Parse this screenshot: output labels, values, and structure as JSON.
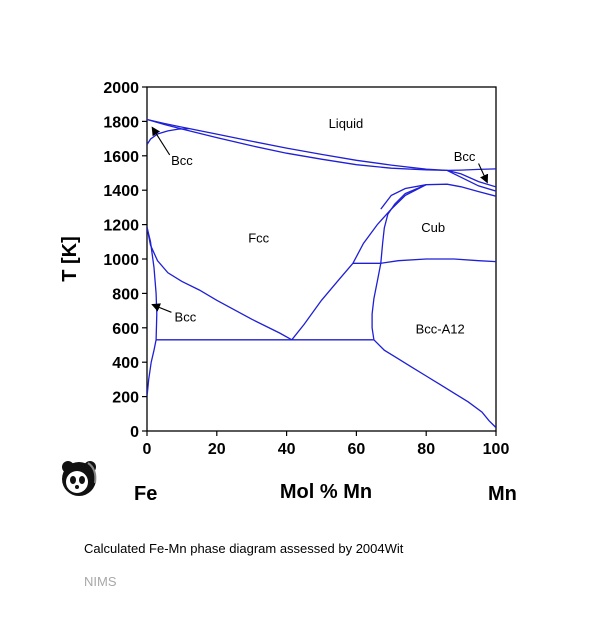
{
  "chart_data": {
    "type": "line",
    "title": "",
    "xlabel": "Mol % Mn",
    "ylabel": "T [K]",
    "xlim": [
      0,
      100
    ],
    "ylim": [
      0,
      2000
    ],
    "xticks": [
      0,
      20,
      40,
      60,
      80,
      100
    ],
    "yticks": [
      0,
      200,
      400,
      600,
      800,
      1000,
      1200,
      1400,
      1600,
      1800,
      2000
    ],
    "grid": false,
    "left_element": "Fe",
    "right_element": "Mn",
    "series": [
      {
        "x": [
          0,
          5,
          10,
          20,
          30,
          40,
          50,
          60,
          70,
          80,
          86,
          90,
          95,
          100
        ],
        "y": [
          1811,
          1788,
          1767,
          1726,
          1685,
          1645,
          1608,
          1574,
          1546,
          1522,
          1515,
          1495,
          1450,
          1419
        ]
      },
      {
        "x": [
          0,
          5,
          10,
          20,
          30,
          40,
          50,
          60,
          70,
          80,
          86
        ],
        "y": [
          1811,
          1782,
          1756,
          1706,
          1658,
          1615,
          1580,
          1548,
          1528,
          1518,
          1515
        ]
      },
      {
        "x": [
          0,
          1,
          3,
          6,
          9,
          12
        ],
        "y": [
          1665,
          1697,
          1727,
          1745,
          1755,
          1758
        ]
      },
      {
        "x": [
          86,
          90,
          95,
          100
        ],
        "y": [
          1515,
          1517,
          1521,
          1524
        ]
      },
      {
        "x": [
          86,
          90,
          95,
          100
        ],
        "y": [
          1515,
          1475,
          1425,
          1395
        ]
      },
      {
        "x": [
          67,
          70,
          74,
          80,
          86,
          90,
          95,
          100
        ],
        "y": [
          1290,
          1370,
          1410,
          1432,
          1435,
          1420,
          1392,
          1365
        ]
      },
      {
        "x": [
          59,
          62,
          66,
          70,
          74,
          80
        ],
        "y": [
          975,
          1090,
          1200,
          1290,
          1370,
          1432
        ]
      },
      {
        "x": [
          67,
          67.5,
          68,
          69,
          71,
          74,
          80
        ],
        "y": [
          975,
          1090,
          1180,
          1260,
          1320,
          1380,
          1432
        ]
      },
      {
        "x": [
          59,
          67
        ],
        "y": [
          975,
          975
        ]
      },
      {
        "x": [
          67,
          72,
          80,
          88,
          95,
          100
        ],
        "y": [
          975,
          990,
          1000,
          1000,
          990,
          985
        ]
      },
      {
        "x": [
          0,
          1,
          3,
          6,
          10,
          15,
          20,
          30,
          38,
          41.5
        ],
        "y": [
          1185,
          1080,
          990,
          920,
          870,
          820,
          760,
          650,
          570,
          530
        ]
      },
      {
        "x": [
          41.5,
          45,
          50,
          55,
          59
        ],
        "y": [
          530,
          620,
          760,
          880,
          975
        ]
      },
      {
        "x": [
          67,
          66,
          65,
          64.5,
          64.5,
          65
        ],
        "y": [
          975,
          870,
          770,
          680,
          600,
          530
        ]
      },
      {
        "x": [
          2.6,
          64.9
        ],
        "y": [
          530,
          530
        ]
      },
      {
        "x": [
          65,
          68,
          72,
          76,
          80,
          84,
          88,
          92,
          96,
          98,
          100
        ],
        "y": [
          530,
          470,
          420,
          370,
          320,
          270,
          220,
          170,
          110,
          60,
          20
        ]
      },
      {
        "x": [
          0,
          1,
          2,
          2.6,
          2.8,
          2.6,
          2,
          1.2,
          0.5,
          0
        ],
        "y": [
          1185,
          1100,
          950,
          800,
          680,
          530,
          470,
          400,
          300,
          200
        ]
      }
    ],
    "region_labels": [
      {
        "text": "Liquid",
        "x": 57,
        "y": 1790
      },
      {
        "text": "Bcc",
        "x": 10,
        "y": 1575
      },
      {
        "text": "Bcc",
        "x": 91,
        "y": 1600
      },
      {
        "text": "Fcc",
        "x": 32,
        "y": 1125
      },
      {
        "text": "Cub",
        "x": 82,
        "y": 1185
      },
      {
        "text": "Bcc",
        "x": 11,
        "y": 665
      },
      {
        "text": "Bcc-A12",
        "x": 84,
        "y": 595
      }
    ],
    "arrows": [
      {
        "from": [
          6.5,
          1605
        ],
        "to": [
          1.5,
          1765
        ]
      },
      {
        "from": [
          95,
          1555
        ],
        "to": [
          97.5,
          1445
        ]
      },
      {
        "from": [
          7,
          690
        ],
        "to": [
          1.5,
          735
        ]
      }
    ]
  },
  "caption": "Calculated Fe-Mn phase diagram assessed by 2004Wit",
  "footer": "NIMS",
  "logo_name": "panda-logo"
}
